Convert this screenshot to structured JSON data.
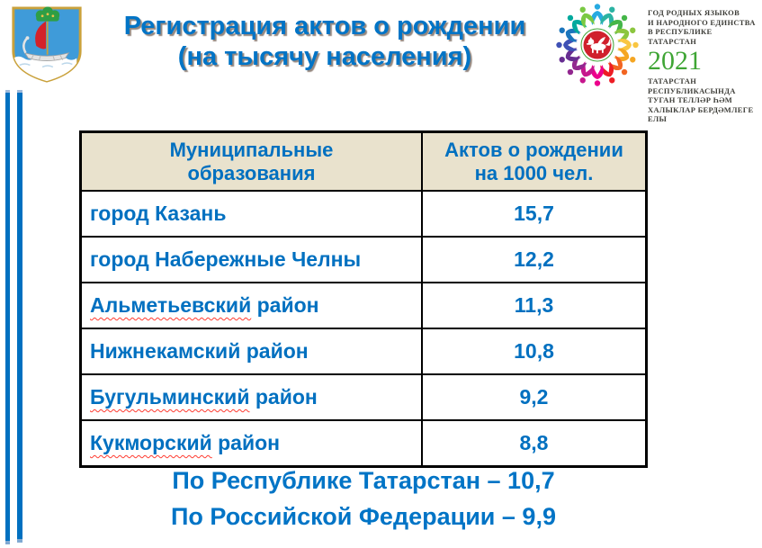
{
  "slide": {
    "title_line1": "Регистрация актов о рождении",
    "title_line2": "(на тысячу населения)"
  },
  "emblem_right": {
    "icon": "year-2021-tatarstan-emblem",
    "top_lines": [
      "ГОД РОДНЫХ ЯЗЫКОВ",
      "И НАРОДНОГО ЕДИНСТВА",
      "В РЕСПУБЛИКЕ ТАТАРСТАН"
    ],
    "year": "2021",
    "bottom_lines": [
      "ТАТАРСТАН РЕСПУБЛИКАСЫНДА",
      "ТУГАН ТЕЛЛӘР ҺӘМ",
      "ХАЛЫКЛАР БЕРДӘМЛЕГЕ ЕЛЫ"
    ]
  },
  "coat_of_arms": {
    "icon": "naberezhnye-chelny-coat-of-arms"
  },
  "table": {
    "headers": [
      "Муниципальные образования",
      "Актов о рождении на 1000 чел."
    ],
    "rows": [
      {
        "name": "город Казань",
        "value": "15,7",
        "squiggle": ""
      },
      {
        "name": "город Набережные Челны",
        "value": "12,2",
        "squiggle": ""
      },
      {
        "name": "Альметьевский район",
        "value": "11,3",
        "squiggle": "Альметьевский"
      },
      {
        "name": "Нижнекамский район",
        "value": "10,8",
        "squiggle": ""
      },
      {
        "name": "Бугульминский район",
        "value": "9,2",
        "squiggle": "Бугульминский"
      },
      {
        "name": "Кукморский район",
        "value": "8,8",
        "squiggle": "Кукморский"
      }
    ]
  },
  "summary": {
    "line1": "По Республике Татарстан – 10,7",
    "line2": "По Российской Федерации – 9,9"
  },
  "colors": {
    "accent_blue": "#0074C6",
    "table_text_blue": "#0070C0",
    "header_beige": "#E9E2CD",
    "year_green": "#3FA535",
    "squiggle_red": "#FF3B30",
    "stripe_blue": "#0070C0"
  }
}
